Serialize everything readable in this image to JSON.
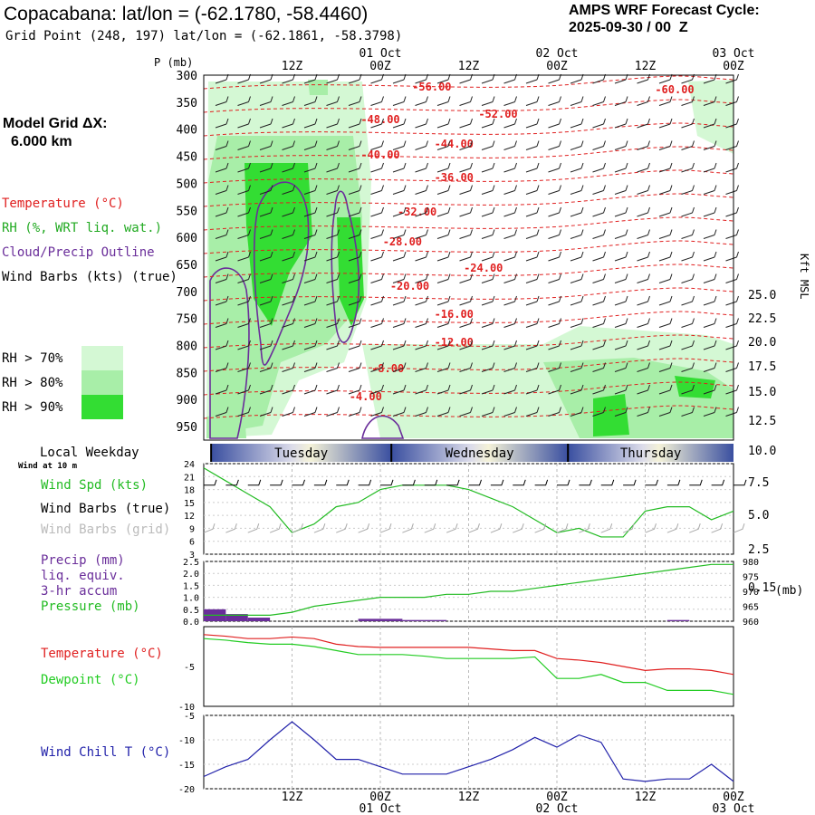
{
  "header": {
    "title": "Copacabana:  lat/lon = (-62.1780, -58.4460)",
    "grid_point": "Grid Point (248, 197) lat/lon = (-62.1861, -58.3798)",
    "cycle_title": "AMPS WRF Forecast Cycle:",
    "cycle_value": "2025-09-30 / 00  Z"
  },
  "model_grid": {
    "label": "Model Grid ΔX:",
    "value": "6.000 km"
  },
  "colors": {
    "temperature": "#e02020",
    "rh70": "#d4f8d4",
    "rh80": "#a8eea8",
    "rh90": "#33dd33",
    "cloud": "#6a2e9a",
    "wind_speed": "#22bb22",
    "wind_chill": "#2222aa",
    "dewpoint": "#22cc22",
    "pressure": "#22bb22",
    "precip": "#6a2e9a",
    "grid_barbs": "#aaaaaa"
  },
  "time_axis": {
    "top_labels": [
      {
        "t": 12,
        "label": "12Z"
      },
      {
        "t": 24,
        "label": "00Z",
        "date": "01 Oct"
      },
      {
        "t": 36,
        "label": "12Z"
      },
      {
        "t": 48,
        "label": "00Z",
        "date": "02 Oct"
      },
      {
        "t": 60,
        "label": "12Z"
      },
      {
        "t": 72,
        "label": "00Z",
        "date": "03 Oct"
      }
    ],
    "bottom_labels": [
      {
        "t": 12,
        "label": "12Z"
      },
      {
        "t": 24,
        "label": "00Z",
        "date": "01 Oct"
      },
      {
        "t": 36,
        "label": "12Z"
      },
      {
        "t": 48,
        "label": "00Z",
        "date": "02 Oct"
      },
      {
        "t": 60,
        "label": "12Z"
      },
      {
        "t": 72,
        "label": "00Z",
        "date": "03 Oct"
      }
    ]
  },
  "weekday_bar": {
    "label": "Local Weekday",
    "days": [
      {
        "name": "Tuesday",
        "t_start": 1,
        "t_end": 25.5
      },
      {
        "name": "Wednesday",
        "t_start": 25.5,
        "t_end": 49.5
      },
      {
        "name": "Thursday",
        "t_start": 49.5,
        "t_end": 72
      }
    ]
  },
  "chart_data": [
    {
      "type": "heatmap",
      "ylabel": "P (mb)",
      "y_ticks": [
        "300",
        "350",
        "400",
        "450",
        "500",
        "550",
        "600",
        "650",
        "700",
        "750",
        "800",
        "850",
        "900",
        "950"
      ],
      "y_right_label": "Kft MSL",
      "y_right_ticks": [
        {
          "p": 325,
          "label": "25.0"
        },
        {
          "p": 351,
          "label": "22.5"
        },
        {
          "p": 377,
          "label": "20.0"
        },
        {
          "p": 404,
          "label": "17.5"
        },
        {
          "p": 432,
          "label": "15.0"
        },
        {
          "p": 464,
          "label": "12.5"
        },
        {
          "p": 497,
          "label": "10.0"
        },
        {
          "p": 532,
          "label": "7.5"
        },
        {
          "p": 568,
          "label": "5.0"
        },
        {
          "p": 606,
          "label": "2.5"
        },
        {
          "p": 648,
          "label": "0.15"
        }
      ],
      "legend": {
        "temperature": "Temperature (°C)",
        "rh": "RH (%, WRT liq. wat.)",
        "cloud": "Cloud/Precip Outline",
        "wind_barbs": "Wind Barbs (kts) (true)",
        "rh70": "RH > 70%",
        "rh80": "RH > 80%",
        "rh90": "RH > 90%"
      },
      "isotherm_labels": [
        {
          "t": 31,
          "p": 100,
          "label": "-56.00"
        },
        {
          "t": 40,
          "p": 130,
          "label": "-52.00"
        },
        {
          "t": 64,
          "p": 103,
          "label": "-60.00"
        },
        {
          "t": 24,
          "p": 136,
          "label": "-48.00"
        },
        {
          "t": 34,
          "p": 163,
          "label": "-44.00"
        },
        {
          "t": 24,
          "p": 175,
          "label": "-40.00"
        },
        {
          "t": 34,
          "p": 200,
          "label": "-36.00"
        },
        {
          "t": 29,
          "p": 238,
          "label": "-32.00"
        },
        {
          "t": 27,
          "p": 271,
          "label": "-28.00"
        },
        {
          "t": 38,
          "p": 300,
          "label": "-24.00"
        },
        {
          "t": 28,
          "p": 320,
          "label": "-20.00"
        },
        {
          "t": 34,
          "p": 351,
          "label": "-16.00"
        },
        {
          "t": 34,
          "p": 382,
          "label": "-12.00"
        },
        {
          "t": 25,
          "p": 411,
          "label": "-8.00"
        },
        {
          "t": 22,
          "p": 442,
          "label": "-4.00"
        }
      ]
    },
    {
      "type": "line",
      "title": "",
      "legend": {
        "speed": "Wind Spd (kts)",
        "barbs_true": "Wind Barbs (true)",
        "barbs_grid": "Wind Barbs (grid)",
        "sub": "Wind at 10 m"
      },
      "y_ticks": [
        3,
        6,
        9,
        12,
        15,
        18,
        21,
        24
      ],
      "ylim": [
        3,
        24
      ],
      "x": [
        0,
        3,
        6,
        9,
        12,
        15,
        18,
        21,
        24,
        27,
        30,
        33,
        36,
        39,
        42,
        45,
        48,
        51,
        54,
        57,
        60,
        63,
        66,
        69,
        72
      ],
      "series": [
        {
          "values": [
            23,
            20,
            17,
            14,
            8,
            10,
            14,
            15,
            18,
            19,
            19,
            19,
            18,
            16,
            14,
            11,
            8,
            9,
            7,
            7,
            13,
            14,
            14,
            11,
            13
          ]
        }
      ]
    },
    {
      "type": "bar",
      "legend": {
        "precip": "Precip (mm)",
        "precip2": "liq. equiv.",
        "precip3": "3-hr accum",
        "pressure": "Pressure (mb)"
      },
      "y_left_ticks": [
        "0.0",
        "0.5",
        "1.0",
        "1.5",
        "2.0",
        "2.5"
      ],
      "y_right_ticks": [
        "960",
        "965",
        "970",
        "975",
        "980"
      ],
      "y_right_unit": "(mb)",
      "ylim_left": [
        0,
        2.5
      ],
      "ylim_right": [
        960,
        980
      ],
      "precip": [
        {
          "t": 1.5,
          "value": 0.5
        },
        {
          "t": 4.5,
          "value": 0.3
        },
        {
          "t": 7.5,
          "value": 0.15
        },
        {
          "t": 22.5,
          "value": 0.1
        },
        {
          "t": 25.5,
          "value": 0.1
        },
        {
          "t": 28.5,
          "value": 0.05
        },
        {
          "t": 31.5,
          "value": 0.05
        },
        {
          "t": 64.5,
          "value": 0.05
        }
      ],
      "pressure": {
        "x": [
          0,
          3,
          6,
          9,
          12,
          15,
          18,
          21,
          24,
          27,
          30,
          33,
          36,
          39,
          42,
          45,
          48,
          51,
          54,
          57,
          60,
          63,
          66,
          69,
          72
        ],
        "values": [
          962,
          962,
          962,
          962,
          963,
          965,
          966,
          967,
          968,
          968,
          968,
          969,
          969,
          970,
          970,
          971,
          972,
          973,
          974,
          975,
          976,
          977,
          978,
          979,
          979
        ]
      }
    },
    {
      "type": "line",
      "legend": {
        "temperature": "Temperature (°C)",
        "dewpoint": "Dewpoint (°C)"
      },
      "y_ticks": [
        {
          "v": -5,
          "label": "-5"
        },
        {
          "v": -10,
          "label": "-10"
        }
      ],
      "ylim": [
        -10,
        0
      ],
      "x": [
        0,
        3,
        6,
        9,
        12,
        15,
        18,
        21,
        24,
        27,
        30,
        33,
        36,
        39,
        42,
        45,
        48,
        51,
        54,
        57,
        60,
        63,
        66,
        69,
        72
      ],
      "series": [
        {
          "key": "temperature",
          "values": [
            -1,
            -1.2,
            -1.5,
            -1.5,
            -1.3,
            -1.5,
            -2.2,
            -2.5,
            -2.6,
            -2.6,
            -2.6,
            -2.6,
            -2.6,
            -2.8,
            -3,
            -3,
            -4,
            -4.2,
            -4.5,
            -5,
            -5.5,
            -5.3,
            -5.3,
            -5.5,
            -6
          ]
        },
        {
          "key": "dewpoint",
          "values": [
            -1.5,
            -1.7,
            -2,
            -2.2,
            -2.2,
            -2.5,
            -3,
            -3.5,
            -3.5,
            -3.5,
            -3.7,
            -4,
            -4,
            -4,
            -4,
            -3.8,
            -6.5,
            -6.5,
            -6,
            -7,
            -7,
            -8,
            -8,
            -8,
            -8.5
          ]
        }
      ]
    },
    {
      "type": "line",
      "legend": {
        "windchill": "Wind Chill T (°C)"
      },
      "y_ticks": [
        {
          "v": -5,
          "label": "-5"
        },
        {
          "v": -10,
          "label": "-10"
        },
        {
          "v": -15,
          "label": "-15"
        },
        {
          "v": -20,
          "label": "-20"
        }
      ],
      "ylim": [
        -20,
        -5
      ],
      "x": [
        0,
        3,
        6,
        9,
        12,
        15,
        18,
        21,
        24,
        27,
        30,
        33,
        36,
        39,
        42,
        45,
        48,
        51,
        54,
        57,
        60,
        63,
        66,
        69,
        72
      ],
      "series": [
        {
          "key": "windchill",
          "values": [
            -17.5,
            -15.5,
            -14,
            -10,
            -6.3,
            -10,
            -14,
            -14,
            -15.5,
            -17,
            -17,
            -17,
            -15.5,
            -14,
            -12,
            -9.5,
            -11.5,
            -9,
            -10.5,
            -18,
            -18.5,
            -18,
            -18,
            -15,
            -18.5
          ]
        }
      ]
    }
  ]
}
